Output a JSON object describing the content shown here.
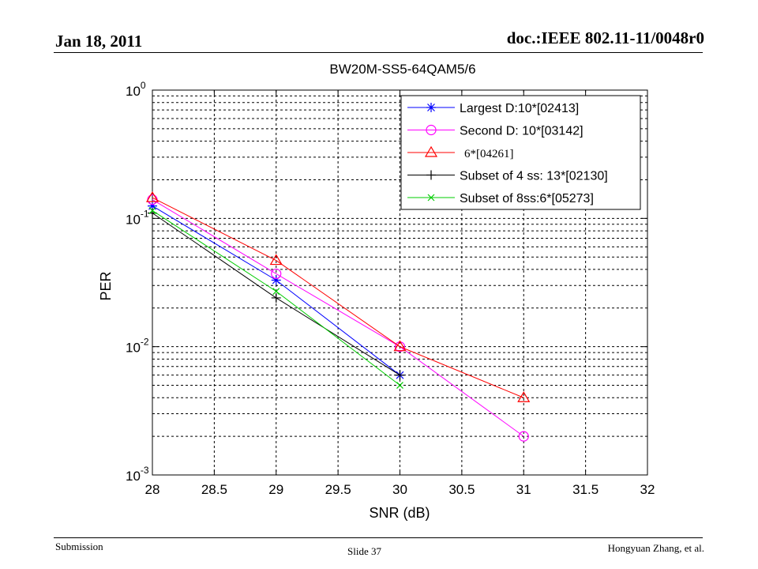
{
  "header": {
    "date": "Jan 18, 2011",
    "doc_id": "doc.:IEEE 802.11-11/0048r0"
  },
  "footer": {
    "submission": "Submission",
    "slide": "Slide 37",
    "author": "Hongyuan Zhang, et al."
  },
  "chart_data": {
    "type": "line",
    "title": "BW20M-SS5-64QAM5/6",
    "xlabel": "SNR (dB)",
    "ylabel": "PER",
    "xlim": [
      28,
      32
    ],
    "ylim": [
      0.001,
      1
    ],
    "yscale": "log",
    "grid": true,
    "legend_position": "top-right",
    "x_ticks": [
      28,
      28.5,
      29,
      29.5,
      30,
      30.5,
      31,
      31.5,
      32
    ],
    "x_tick_labels": [
      "28",
      "28.5",
      "29",
      "29.5",
      "30",
      "30.5",
      "31",
      "31.5",
      "32"
    ],
    "y_ticks": [
      {
        "value": 1,
        "base": "10",
        "exp": "0"
      },
      {
        "value": 0.1,
        "base": "10",
        "exp": "-1"
      },
      {
        "value": 0.01,
        "base": "10",
        "exp": "-2"
      },
      {
        "value": 0.001,
        "base": "10",
        "exp": "-3"
      }
    ],
    "series": [
      {
        "name": "Largest D:10*[02413]",
        "color": "#0000ff",
        "marker": "asterisk",
        "x": [
          28,
          29,
          30
        ],
        "y": [
          0.125,
          0.033,
          0.006
        ]
      },
      {
        "name": "Second D: 10*[03142]",
        "color": "#ff00ff",
        "marker": "circle",
        "x": [
          28,
          29,
          30,
          31
        ],
        "y": [
          0.14,
          0.037,
          0.01,
          0.002
        ]
      },
      {
        "name": "6*[04261]",
        "color": "#ff0000",
        "marker": "triangle",
        "x": [
          28,
          29,
          30,
          31
        ],
        "y": [
          0.145,
          0.047,
          0.01,
          0.004
        ]
      },
      {
        "name": "Subset of 4 ss: 13*[02130]",
        "color": "#000000",
        "marker": "plus",
        "x": [
          28,
          29,
          30
        ],
        "y": [
          0.11,
          0.024,
          0.006
        ]
      },
      {
        "name": "Subset of 8ss:6*[05273]",
        "color": "#00cc00",
        "marker": "x",
        "x": [
          28,
          29,
          30
        ],
        "y": [
          0.115,
          0.027,
          0.005
        ]
      }
    ]
  }
}
